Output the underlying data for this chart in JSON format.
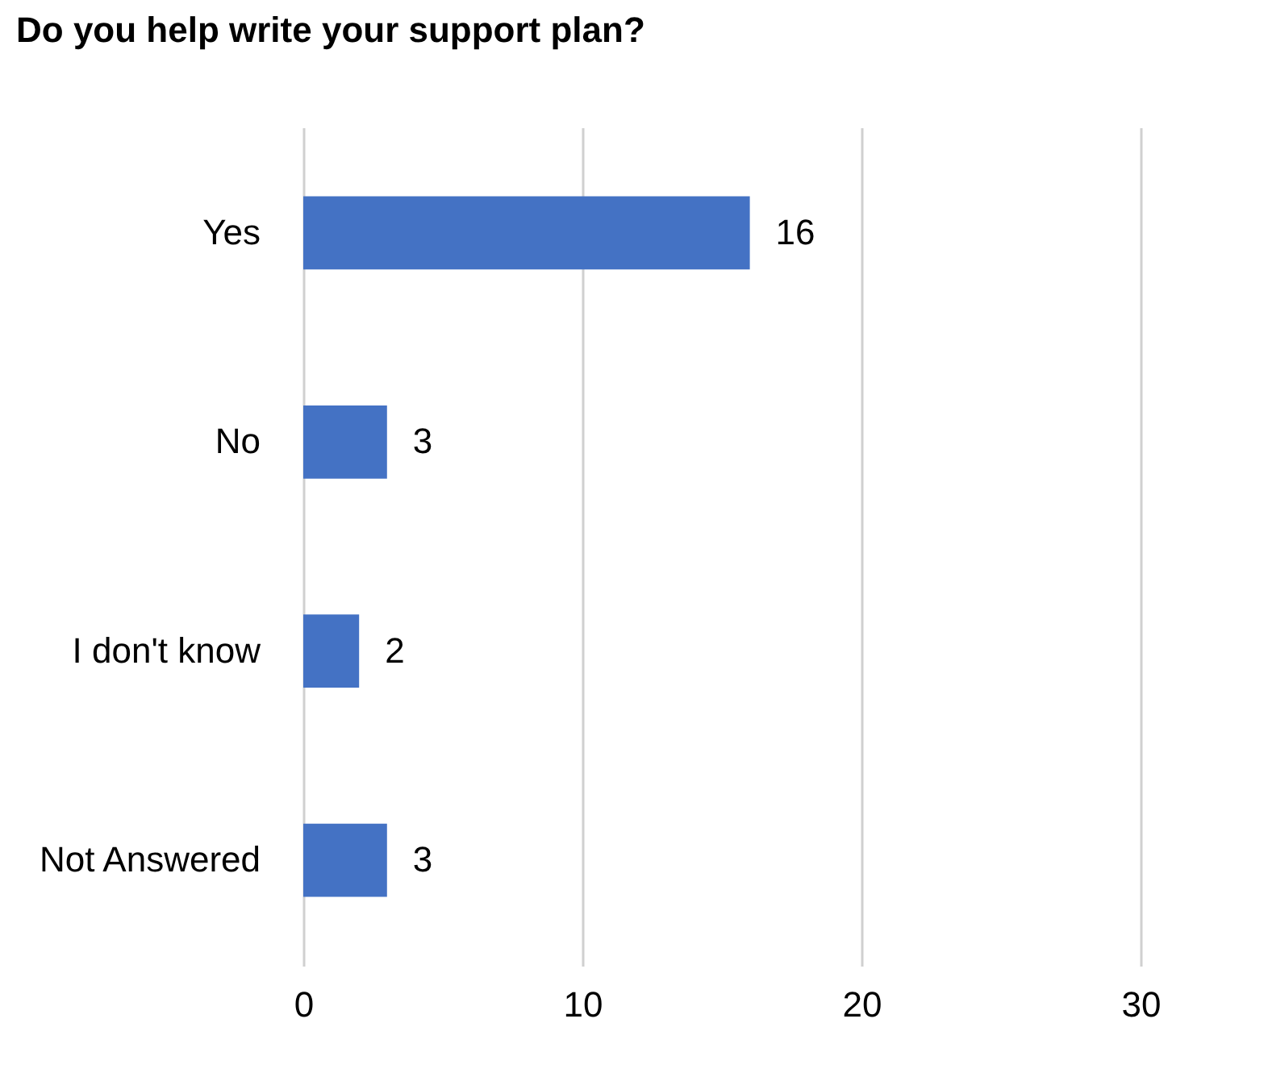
{
  "chart_data": {
    "type": "bar",
    "orientation": "horizontal",
    "title": "Do you help write your support plan?",
    "categories": [
      "Yes",
      "No",
      "I don't know",
      "Not Answered"
    ],
    "values": [
      16,
      3,
      2,
      3
    ],
    "color": "#4472c4",
    "data_labels": true,
    "xlim": [
      0,
      30
    ],
    "xticks": [
      0,
      10,
      20,
      30
    ],
    "grid": "x"
  }
}
